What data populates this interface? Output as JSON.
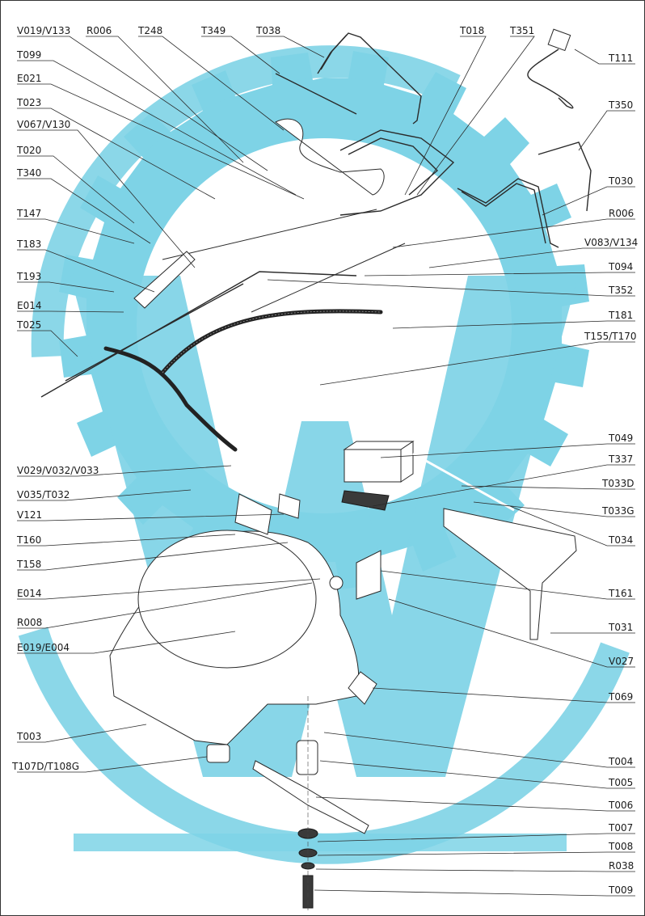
{
  "watermark": {
    "color": "#7ed3e6"
  },
  "colors": {
    "ink": "#1a1a1a",
    "background": "#ffffff"
  },
  "labels": {
    "V019_V133": "V019/V133",
    "R006_top": "R006",
    "T248": "T248",
    "T349": "T349",
    "T038": "T038",
    "T018": "T018",
    "T351": "T351",
    "T111": "T111",
    "T099": "T099",
    "E021": "E021",
    "T023": "T023",
    "V067_V130": "V067/V130",
    "T020": "T020",
    "T340": "T340",
    "T147": "T147",
    "T183": "T183",
    "T193": "T193",
    "E014_top": "E014",
    "T025": "T025",
    "T350": "T350",
    "T030": "T030",
    "R006_right": "R006",
    "V083_V134": "V083/V134",
    "T094": "T094",
    "T352": "T352",
    "T181": "T181",
    "T155_T170": "T155/T170",
    "T049": "T049",
    "V029_V032_V033": "V029/V032/V033",
    "T337": "T337",
    "V035_T032": "V035/T032",
    "T033D": "T033D",
    "V121": "V121",
    "T033G": "T033G",
    "T160": "T160",
    "T034": "T034",
    "T158": "T158",
    "E014_mid": "E014",
    "T161": "T161",
    "R008": "R008",
    "T031": "T031",
    "E019_E004": "E019/E004",
    "V027": "V027",
    "T069": "T069",
    "T003": "T003",
    "T004": "T004",
    "T107D_T108G": "T107D/T108G",
    "T005": "T005",
    "T006": "T006",
    "T007": "T007",
    "T008": "T008",
    "R038": "R038",
    "T009": "T009"
  }
}
